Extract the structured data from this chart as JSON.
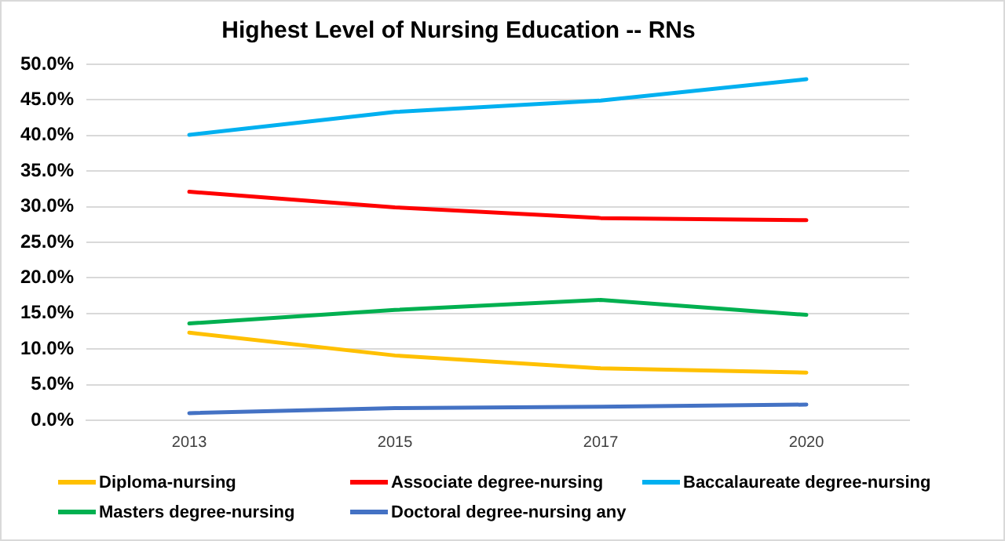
{
  "chart_data": {
    "type": "line",
    "title": "Highest Level of Nursing Education -- RNs",
    "categories": [
      "2013",
      "2015",
      "2017",
      "2020"
    ],
    "series": [
      {
        "name": "Diploma-nursing",
        "color": "#ffc000",
        "values": [
          12.3,
          9.1,
          7.3,
          6.7
        ]
      },
      {
        "name": "Associate degree-nursing",
        "color": "#ff0000",
        "values": [
          32.1,
          29.9,
          28.4,
          28.1
        ]
      },
      {
        "name": "Baccalaureate degree-nursing",
        "color": "#00b0f0",
        "values": [
          40.1,
          43.3,
          44.9,
          47.9
        ]
      },
      {
        "name": "Masters degree-nursing",
        "color": "#00b050",
        "values": [
          13.6,
          15.5,
          16.9,
          14.8
        ]
      },
      {
        "name": "Doctoral degree-nursing any",
        "color": "#4472c4",
        "values": [
          1.0,
          1.7,
          1.9,
          2.2
        ]
      }
    ],
    "ylim": [
      0,
      50
    ],
    "yticks": [
      {
        "value": 0,
        "label": "0.0%"
      },
      {
        "value": 5,
        "label": "5.0%"
      },
      {
        "value": 10,
        "label": "10.0%"
      },
      {
        "value": 15,
        "label": "15.0%"
      },
      {
        "value": 20,
        "label": "20.0%"
      },
      {
        "value": 25,
        "label": "25.0%"
      },
      {
        "value": 30,
        "label": "30.0%"
      },
      {
        "value": 35,
        "label": "35.0%"
      },
      {
        "value": 40,
        "label": "40.0%"
      },
      {
        "value": 45,
        "label": "45.0%"
      },
      {
        "value": 50,
        "label": "50.0%"
      }
    ],
    "grid": "y",
    "legend": "bottom",
    "marker": "none",
    "line_style": "solid"
  }
}
